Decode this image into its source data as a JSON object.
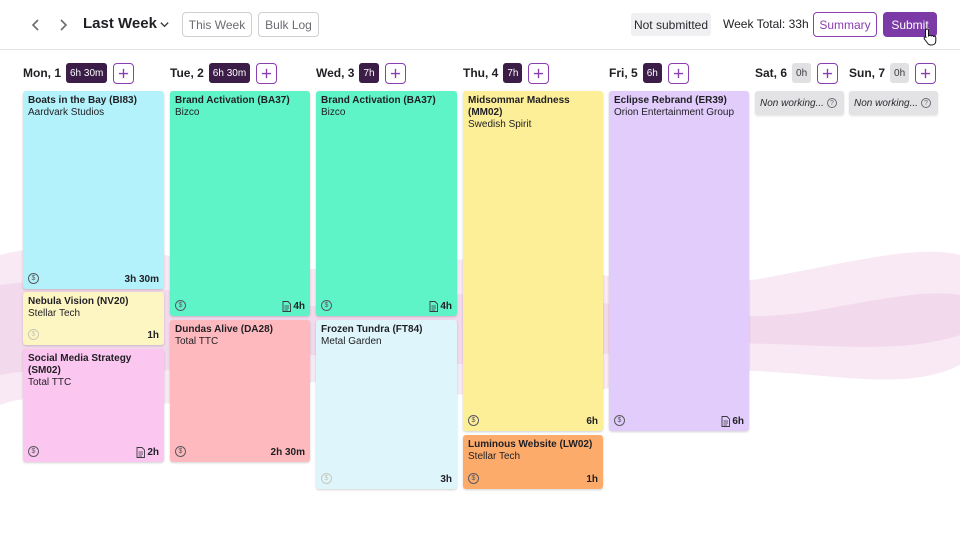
{
  "header": {
    "title": "Last Week",
    "this_week": "This Week",
    "bulk_log": "Bulk Log",
    "status": "Not submitted",
    "week_total": "Week Total: 33h",
    "summary": "Summary",
    "submit": "Submit"
  },
  "days": [
    {
      "label": "Mon, 1",
      "total": "6h 30m"
    },
    {
      "label": "Tue, 2",
      "total": "6h 30m"
    },
    {
      "label": "Wed, 3",
      "total": "7h"
    },
    {
      "label": "Thu, 4",
      "total": "7h"
    },
    {
      "label": "Fri, 5",
      "total": "6h"
    },
    {
      "label": "Sat, 6",
      "total": "0h",
      "nonworking": "Non working..."
    },
    {
      "label": "Sun, 7",
      "total": "0h",
      "nonworking": "Non working..."
    }
  ],
  "entries": {
    "mon": [
      {
        "title": "Boats in the Bay (BI83)",
        "client": "Aardvark Studios",
        "hours": "3h 30m",
        "color": "#b3f2fb"
      },
      {
        "title": "Nebula Vision (NV20)",
        "client": "Stellar Tech",
        "hours": "1h",
        "color": "#fdf6c3"
      },
      {
        "title": "Social Media Strategy (SM02)",
        "client": "Total TTC",
        "hours": "2h",
        "color": "#fbc6f0"
      }
    ],
    "tue": [
      {
        "title": "Brand Activation (BA37)",
        "client": "Bizco",
        "hours": "4h",
        "color": "#5ff3c8"
      },
      {
        "title": "Dundas Alive (DA28)",
        "client": "Total TTC",
        "hours": "2h 30m",
        "color": "#fdb9bd"
      }
    ],
    "wed": [
      {
        "title": "Brand Activation (BA37)",
        "client": "Bizco",
        "hours": "4h",
        "color": "#5ff3c8"
      },
      {
        "title": "Frozen Tundra (FT84)",
        "client": "Metal Garden",
        "hours": "3h",
        "color": "#def6fb"
      }
    ],
    "thu": [
      {
        "title": "Midsommar Madness (MM02)",
        "client": "Swedish Spirit",
        "hours": "6h",
        "color": "#fdef97"
      },
      {
        "title": "Luminous Website (LW02)",
        "client": "Stellar Tech",
        "hours": "1h",
        "color": "#fdab6b"
      }
    ],
    "fri": [
      {
        "title": "Eclipse Rebrand (ER39)",
        "client": "Orion Entertainment Group",
        "hours": "6h",
        "color": "#e2ccfb"
      }
    ]
  },
  "icons": {
    "prev": "chevron-left-icon",
    "next": "chevron-right-icon",
    "dropdown": "chevron-down-icon",
    "add": "plus-icon",
    "billing": "dollar-circle-icon",
    "note": "document-icon",
    "help": "question-circle-icon"
  },
  "colors": {
    "accent": "#7b3aa6",
    "day_total_bg": "#3b1d47"
  }
}
